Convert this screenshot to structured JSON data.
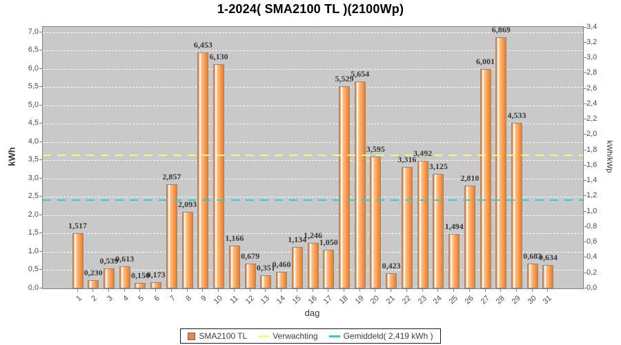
{
  "colors": {
    "bar_fill": "#F58220",
    "bar_highlight": "#FFFFFF",
    "bar_border": "#8A8A8A",
    "plot_background": "#C9C9C9",
    "plot_border": "#7F7F7F",
    "gridline": "#FFFFFF",
    "verwachting_line": "#F7F780",
    "gemiddeld_line": "#2FCFCF",
    "legend_square": "#F0824D",
    "value_label": "#383838",
    "tick_label": "#4A4A4A"
  },
  "chart_data": {
    "type": "bar",
    "title": "1-2024( SMA2100 TL )(2100Wp)",
    "xlabel": "dag",
    "ylabel": "kWh",
    "ylabel_right": "kWh/kWp",
    "grid": true,
    "legend_position": "bottom",
    "kwp": 2.1,
    "categories": [
      "1",
      "2",
      "3",
      "4",
      "5",
      "6",
      "7",
      "8",
      "9",
      "10",
      "11",
      "12",
      "13",
      "14",
      "15",
      "16",
      "17",
      "18",
      "19",
      "20",
      "21",
      "22",
      "23",
      "24",
      "25",
      "26",
      "27",
      "28",
      "29",
      "30",
      "31"
    ],
    "values": [
      1.517,
      0.23,
      0.539,
      0.613,
      0.15,
      0.173,
      2.857,
      2.093,
      6.453,
      6.13,
      1.166,
      0.679,
      0.351,
      0.46,
      1.134,
      1.246,
      1.05,
      5.529,
      5.654,
      3.595,
      0.423,
      3.316,
      3.492,
      3.125,
      1.494,
      2.81,
      6.001,
      6.869,
      4.533,
      0.683,
      0.634
    ],
    "value_labels": [
      "1,517",
      "0,230",
      "0,539",
      "0,613",
      "0,150",
      "0,173",
      "2,857",
      "2,093",
      "6,453",
      "6,130",
      "1,166",
      "0,679",
      "0,351",
      "0,460",
      "1,134",
      "1,246",
      "1,050",
      "5,529",
      "5,654",
      "3,595",
      "0,423",
      "3,316",
      "3,492",
      "3,125",
      "1,494",
      "2,810",
      "6,001",
      "6,869",
      "4,533",
      "0,683",
      "0,634"
    ],
    "left_axis": {
      "min": 0.0,
      "max": 7.0,
      "step": 0.5,
      "tick_labels": [
        "0,0",
        "0,5",
        "1,0",
        "1,5",
        "2,0",
        "2,5",
        "3,0",
        "3,5",
        "4,0",
        "4,5",
        "5,0",
        "5,5",
        "6,0",
        "6,5",
        "7,0"
      ]
    },
    "right_axis": {
      "min": 0.0,
      "max": 3.4,
      "step": 0.2,
      "tick_labels": [
        "0,0",
        "0,2",
        "0,4",
        "0,6",
        "0,8",
        "1,0",
        "1,2",
        "1,4",
        "1,6",
        "1,8",
        "2,0",
        "2,2",
        "2,4",
        "2,6",
        "2,8",
        "3,0",
        "3,2",
        "3,4"
      ]
    },
    "markers": [
      {
        "name": "Verwachting",
        "value_kwh": 3.64
      },
      {
        "name": "Gemiddeld",
        "value_kwh": 2.419
      }
    ],
    "legend": [
      {
        "label": "SMA2100 TL",
        "swatch": "square"
      },
      {
        "label": "Verwachting",
        "swatch": "line"
      },
      {
        "label": "Gemiddeld( 2,419 kWh )",
        "swatch": "line"
      }
    ]
  }
}
